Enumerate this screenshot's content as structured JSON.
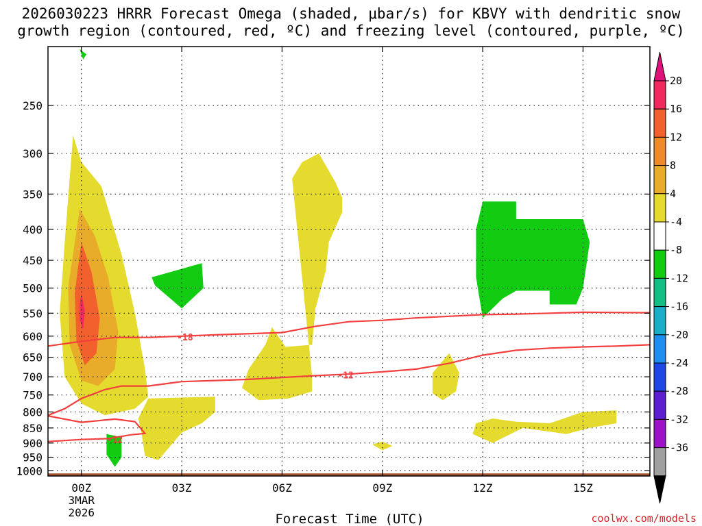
{
  "title": "2026030223 HRRR Forecast Omega (shaded, μbar/s) for KBVY with dendritic snow\ngrowth region (contoured, red, ºC) and freezing level (contoured, purple, ºC)",
  "credit": "coolwx.com/models",
  "chart_data": {
    "type": "contour",
    "title": "2026030223 HRRR Forecast Omega (shaded, μbar/s) for KBVY with dendritic snow growth region (contoured, red, ºC) and freezing level (contoured, purple, ºC)",
    "xlabel": "Forecast Time (UTC)",
    "ylabel": "",
    "x_range_hours": [
      -1,
      17
    ],
    "x_ticks": [
      {
        "hour": 0,
        "label": "00Z",
        "sub": [
          "3MAR",
          "2026"
        ]
      },
      {
        "hour": 3,
        "label": "03Z"
      },
      {
        "hour": 6,
        "label": "06Z"
      },
      {
        "hour": 9,
        "label": "09Z"
      },
      {
        "hour": 12,
        "label": "12Z"
      },
      {
        "hour": 15,
        "label": "15Z"
      }
    ],
    "y_axis": "pressure (hPa), log scale, inverted",
    "y_range": [
      200,
      1020
    ],
    "y_ticks": [
      250,
      300,
      350,
      400,
      450,
      500,
      550,
      600,
      650,
      700,
      750,
      800,
      850,
      900,
      950,
      1000
    ],
    "grid": true,
    "colorbar": {
      "levels": [
        20,
        16,
        12,
        8,
        4,
        -4,
        -8,
        -12,
        -16,
        -20,
        -24,
        -28,
        -32,
        -36
      ],
      "colors": [
        "#f02a5e",
        "#f2602e",
        "#ee8a2a",
        "#e8ac2a",
        "#e5db2e",
        "#ffffff",
        "#11cc11",
        "#13be86",
        "#1caec9",
        "#1e8ef0",
        "#1f47e6",
        "#5c1ecf",
        "#9c12c6",
        "#a0a0a0"
      ],
      "top_color": "#e0107a",
      "bottom_color": "#000000"
    },
    "omega_regions": [
      {
        "value_range": "4 to 8",
        "color": "#e5db2e",
        "pts": [
          [
            -0.25,
            280
          ],
          [
            0,
            310
          ],
          [
            0.6,
            340
          ],
          [
            1.2,
            440
          ],
          [
            1.6,
            550
          ],
          [
            1.9,
            680
          ],
          [
            2.0,
            755
          ],
          [
            1.6,
            790
          ],
          [
            0.7,
            810
          ],
          [
            0.0,
            775
          ],
          [
            -0.5,
            700
          ],
          [
            -0.65,
            550
          ],
          [
            -0.5,
            420
          ]
        ]
      },
      {
        "value_range": "8 to 12",
        "color": "#e8ac2a",
        "pts": [
          [
            -0.05,
            370
          ],
          [
            0.4,
            410
          ],
          [
            0.8,
            480
          ],
          [
            1.1,
            590
          ],
          [
            1.0,
            680
          ],
          [
            0.5,
            725
          ],
          [
            0.0,
            710
          ],
          [
            -0.35,
            620
          ],
          [
            -0.4,
            500
          ]
        ]
      },
      {
        "value_range": "12 to 16",
        "color": "#f2602e",
        "pts": [
          [
            0.0,
            420
          ],
          [
            0.3,
            470
          ],
          [
            0.55,
            560
          ],
          [
            0.45,
            640
          ],
          [
            0.1,
            670
          ],
          [
            -0.15,
            610
          ],
          [
            -0.2,
            510
          ]
        ]
      },
      {
        "value_range": "16 to 20",
        "color": "#f02a5e",
        "pts": [
          [
            0.0,
            510
          ],
          [
            0.1,
            545
          ],
          [
            0.05,
            585
          ],
          [
            -0.05,
            565
          ],
          [
            -0.05,
            530
          ]
        ]
      },
      {
        "value_range": "4 to 8",
        "color": "#e5db2e",
        "pts": [
          [
            2.0,
            760
          ],
          [
            4.0,
            755
          ],
          [
            4.0,
            800
          ],
          [
            3.6,
            835
          ],
          [
            3.0,
            865
          ],
          [
            2.3,
            960
          ],
          [
            1.9,
            945
          ],
          [
            1.8,
            870
          ],
          [
            1.7,
            820
          ]
        ]
      },
      {
        "value_range": "4 to 8",
        "color": "#e5db2e",
        "pts": [
          [
            6.6,
            310
          ],
          [
            7.1,
            300
          ],
          [
            7.6,
            335
          ],
          [
            7.8,
            355
          ],
          [
            7.8,
            375
          ],
          [
            7.4,
            420
          ],
          [
            7.3,
            470
          ],
          [
            7.0,
            540
          ],
          [
            6.9,
            620
          ],
          [
            6.1,
            625
          ],
          [
            5.7,
            580
          ],
          [
            5.5,
            620
          ],
          [
            5.0,
            680
          ],
          [
            4.8,
            730
          ],
          [
            5.3,
            765
          ],
          [
            6.2,
            760
          ],
          [
            6.9,
            740
          ],
          [
            6.9,
            700
          ],
          [
            6.3,
            330
          ]
        ]
      },
      {
        "value_range": "4 to 8",
        "color": "#e5db2e",
        "pts": [
          [
            11.0,
            640
          ],
          [
            11.3,
            690
          ],
          [
            11.2,
            740
          ],
          [
            10.8,
            765
          ],
          [
            10.5,
            745
          ],
          [
            10.5,
            690
          ]
        ]
      },
      {
        "value_range": "4 to 8",
        "color": "#e5db2e",
        "pts": [
          [
            8.7,
            905
          ],
          [
            9.0,
            895
          ],
          [
            9.3,
            910
          ],
          [
            9.0,
            925
          ]
        ]
      },
      {
        "value_range": "4 to 8",
        "color": "#e5db2e",
        "pts": [
          [
            11.8,
            835
          ],
          [
            12.3,
            820
          ],
          [
            13.0,
            830
          ],
          [
            14.0,
            835
          ],
          [
            15.0,
            800
          ],
          [
            16.0,
            795
          ],
          [
            16.0,
            835
          ],
          [
            15.2,
            850
          ],
          [
            14.5,
            870
          ],
          [
            13.2,
            850
          ],
          [
            12.3,
            900
          ],
          [
            11.7,
            870
          ]
        ]
      },
      {
        "value_range": "-8 to -4",
        "color": "#11cc11",
        "pts": [
          [
            2.1,
            480
          ],
          [
            3.6,
            455
          ],
          [
            3.65,
            500
          ],
          [
            3.0,
            540
          ],
          [
            2.2,
            495
          ]
        ]
      },
      {
        "value_range": "-8 to -4",
        "color": "#11cc11",
        "pts": [
          [
            0.75,
            870
          ],
          [
            1.2,
            880
          ],
          [
            1.2,
            950
          ],
          [
            1.0,
            985
          ],
          [
            0.75,
            940
          ]
        ]
      },
      {
        "value_range": "-8 to -4",
        "color": "#11cc11",
        "pts": [
          [
            -0.05,
            202
          ],
          [
            0.15,
            206
          ],
          [
            0.05,
            210
          ]
        ]
      },
      {
        "value_range": "-8 to -4",
        "color": "#11cc11",
        "pts": [
          [
            12.0,
            360
          ],
          [
            13.0,
            360
          ],
          [
            13.0,
            385
          ],
          [
            15.0,
            385
          ],
          [
            15.2,
            420
          ],
          [
            15.0,
            500
          ],
          [
            14.8,
            532
          ],
          [
            14.0,
            532
          ],
          [
            14.0,
            505
          ],
          [
            13.0,
            505
          ],
          [
            12.6,
            520
          ],
          [
            12.0,
            560
          ],
          [
            11.8,
            480
          ],
          [
            11.8,
            400
          ]
        ]
      }
    ],
    "dendritic_contours": [
      {
        "label": "-18",
        "color": "#f23e3e",
        "label_at": [
          3.1,
          602
        ],
        "pts": [
          [
            -1,
            623
          ],
          [
            0,
            612
          ],
          [
            1,
            603
          ],
          [
            2,
            603
          ],
          [
            3,
            600
          ],
          [
            4,
            597
          ],
          [
            6,
            592
          ],
          [
            7,
            578
          ],
          [
            8,
            568
          ],
          [
            9,
            565
          ],
          [
            10,
            560
          ],
          [
            12,
            553
          ],
          [
            13,
            552
          ],
          [
            14,
            550
          ],
          [
            15,
            548
          ],
          [
            17,
            549
          ]
        ]
      },
      {
        "label": "-12",
        "color": "#f23e3e",
        "label_at": [
          7.9,
          695
        ],
        "pts": [
          [
            -1,
            810
          ],
          [
            -0.5,
            790
          ],
          [
            0,
            760
          ],
          [
            0.7,
            735
          ],
          [
            1.2,
            725
          ],
          [
            2.0,
            725
          ],
          [
            3,
            713
          ],
          [
            4,
            710
          ],
          [
            5,
            707
          ],
          [
            6,
            702
          ],
          [
            7,
            697
          ],
          [
            8,
            693
          ],
          [
            9,
            687
          ],
          [
            10,
            680
          ],
          [
            11,
            665
          ],
          [
            12,
            645
          ],
          [
            13,
            633
          ],
          [
            14,
            628
          ],
          [
            15,
            625
          ],
          [
            16,
            623
          ],
          [
            17,
            620
          ]
        ]
      },
      {
        "label": "-12",
        "color": "#f23e3e",
        "label_at": [
          1.0,
          888
        ],
        "pts": [
          [
            -1,
            812
          ],
          [
            0,
            832
          ],
          [
            1,
            822
          ],
          [
            1.6,
            830
          ],
          [
            1.9,
            868
          ],
          [
            1.5,
            872
          ],
          [
            0.8,
            885
          ],
          [
            0,
            888
          ],
          [
            -1,
            895
          ]
        ]
      }
    ],
    "freezing_level_contours": [],
    "surface_band": {
      "color": "#a0522d",
      "from_hPa": 1010,
      "to_hPa": 1020
    }
  }
}
